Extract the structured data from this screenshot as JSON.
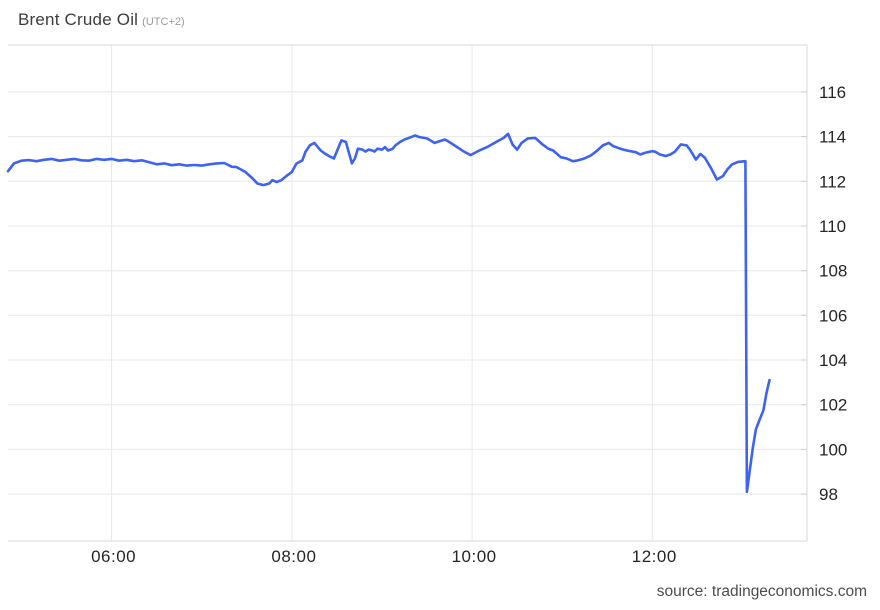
{
  "header": {
    "title": "Brent Crude Oil",
    "timezone_note": "(UTC+2)"
  },
  "footer": {
    "source_label": "source: tradingeconomics.com"
  },
  "colors": {
    "line": "#3e63f2",
    "grid": "#e8e8e8",
    "border": "#d9d9d9",
    "tick_mark": "#cfcfcf",
    "axis_text": "#262626",
    "title_text": "#3d3d3d",
    "subtitle_text": "#999999",
    "source_text": "#4d4d4d",
    "background": "#ffffff"
  },
  "chart_data": {
    "type": "line",
    "title": "Brent Crude Oil (UTC+2)",
    "xlabel": "",
    "ylabel": "",
    "x_ticks": [
      "06:00",
      "08:00",
      "10:00",
      "12:00"
    ],
    "y_ticks": [
      98,
      100,
      102,
      104,
      106,
      108,
      110,
      112,
      114,
      116
    ],
    "xlim": [
      "04:51",
      "13:43"
    ],
    "ylim": [
      95.9,
      118.1
    ],
    "grid": true,
    "legend": false,
    "y_axis_side": "right",
    "source": "tradingeconomics.com",
    "series": [
      {
        "name": "Brent Crude Oil",
        "color": "#3e63f2",
        "points": [
          [
            "04:51",
            112.45
          ],
          [
            "04:55",
            112.8
          ],
          [
            "05:00",
            112.92
          ],
          [
            "05:05",
            112.95
          ],
          [
            "05:10",
            112.9
          ],
          [
            "05:15",
            112.96
          ],
          [
            "05:20",
            113.0
          ],
          [
            "05:25",
            112.92
          ],
          [
            "05:30",
            112.96
          ],
          [
            "05:35",
            113.0
          ],
          [
            "05:40",
            112.94
          ],
          [
            "05:45",
            112.92
          ],
          [
            "05:50",
            113.0
          ],
          [
            "05:55",
            112.96
          ],
          [
            "06:00",
            113.0
          ],
          [
            "06:05",
            112.92
          ],
          [
            "06:10",
            112.96
          ],
          [
            "06:15",
            112.9
          ],
          [
            "06:20",
            112.94
          ],
          [
            "06:25",
            112.85
          ],
          [
            "06:30",
            112.76
          ],
          [
            "06:35",
            112.8
          ],
          [
            "06:40",
            112.72
          ],
          [
            "06:45",
            112.76
          ],
          [
            "06:50",
            112.7
          ],
          [
            "06:55",
            112.73
          ],
          [
            "07:00",
            112.7
          ],
          [
            "07:05",
            112.76
          ],
          [
            "07:10",
            112.8
          ],
          [
            "07:15",
            112.82
          ],
          [
            "07:20",
            112.65
          ],
          [
            "07:23",
            112.64
          ],
          [
            "07:29",
            112.42
          ],
          [
            "07:34",
            112.12
          ],
          [
            "07:37",
            111.9
          ],
          [
            "07:41",
            111.83
          ],
          [
            "07:45",
            111.9
          ],
          [
            "07:47",
            112.05
          ],
          [
            "07:50",
            111.97
          ],
          [
            "07:53",
            112.05
          ],
          [
            "07:57",
            112.27
          ],
          [
            "08:00",
            112.42
          ],
          [
            "08:03",
            112.79
          ],
          [
            "08:07",
            112.94
          ],
          [
            "08:09",
            113.31
          ],
          [
            "08:12",
            113.61
          ],
          [
            "08:15",
            113.72
          ],
          [
            "08:19",
            113.39
          ],
          [
            "08:22",
            113.24
          ],
          [
            "08:25",
            113.12
          ],
          [
            "08:28",
            113.02
          ],
          [
            "08:33",
            113.83
          ],
          [
            "08:36",
            113.76
          ],
          [
            "08:40",
            112.8
          ],
          [
            "08:42",
            113.02
          ],
          [
            "08:44",
            113.46
          ],
          [
            "08:47",
            113.42
          ],
          [
            "08:49",
            113.33
          ],
          [
            "08:51",
            113.42
          ],
          [
            "08:53",
            113.39
          ],
          [
            "08:55",
            113.33
          ],
          [
            "08:57",
            113.46
          ],
          [
            "09:00",
            113.42
          ],
          [
            "09:02",
            113.53
          ],
          [
            "09:04",
            113.38
          ],
          [
            "09:07",
            113.45
          ],
          [
            "09:09",
            113.61
          ],
          [
            "09:12",
            113.76
          ],
          [
            "09:15",
            113.87
          ],
          [
            "09:19",
            113.97
          ],
          [
            "09:22",
            114.05
          ],
          [
            "09:25",
            113.98
          ],
          [
            "09:30",
            113.92
          ],
          [
            "09:35",
            113.72
          ],
          [
            "09:42",
            113.87
          ],
          [
            "09:45",
            113.75
          ],
          [
            "09:50",
            113.53
          ],
          [
            "09:54",
            113.35
          ],
          [
            "09:59",
            113.17
          ],
          [
            "10:04",
            113.35
          ],
          [
            "10:10",
            113.53
          ],
          [
            "10:15",
            113.72
          ],
          [
            "10:21",
            113.94
          ],
          [
            "10:24",
            114.12
          ],
          [
            "10:27",
            113.64
          ],
          [
            "10:30",
            113.42
          ],
          [
            "10:33",
            113.72
          ],
          [
            "10:37",
            113.92
          ],
          [
            "10:42",
            113.94
          ],
          [
            "10:47",
            113.64
          ],
          [
            "10:51",
            113.45
          ],
          [
            "10:54",
            113.38
          ],
          [
            "10:59",
            113.08
          ],
          [
            "11:03",
            113.02
          ],
          [
            "11:07",
            112.9
          ],
          [
            "11:10",
            112.93
          ],
          [
            "11:14",
            113.0
          ],
          [
            "11:19",
            113.15
          ],
          [
            "11:23",
            113.35
          ],
          [
            "11:27",
            113.6
          ],
          [
            "11:31",
            113.72
          ],
          [
            "11:34",
            113.57
          ],
          [
            "11:39",
            113.45
          ],
          [
            "11:43",
            113.38
          ],
          [
            "11:49",
            113.3
          ],
          [
            "11:52",
            113.2
          ],
          [
            "11:55",
            113.27
          ],
          [
            "12:00",
            113.35
          ],
          [
            "12:02",
            113.32
          ],
          [
            "12:05",
            113.2
          ],
          [
            "12:09",
            113.13
          ],
          [
            "12:12",
            113.2
          ],
          [
            "12:15",
            113.32
          ],
          [
            "12:19",
            113.65
          ],
          [
            "12:23",
            113.6
          ],
          [
            "12:25",
            113.42
          ],
          [
            "12:29",
            112.97
          ],
          [
            "12:32",
            113.22
          ],
          [
            "12:35",
            113.05
          ],
          [
            "12:39",
            112.6
          ],
          [
            "12:43",
            112.08
          ],
          [
            "12:47",
            112.23
          ],
          [
            "12:50",
            112.53
          ],
          [
            "12:53",
            112.75
          ],
          [
            "12:57",
            112.87
          ],
          [
            "13:02",
            112.9
          ],
          [
            "13:03",
            98.1
          ],
          [
            "13:07",
            100.1
          ],
          [
            "13:09",
            100.9
          ],
          [
            "13:11",
            101.25
          ],
          [
            "13:14",
            101.75
          ],
          [
            "13:16",
            102.5
          ],
          [
            "13:18",
            103.1
          ]
        ]
      }
    ]
  }
}
